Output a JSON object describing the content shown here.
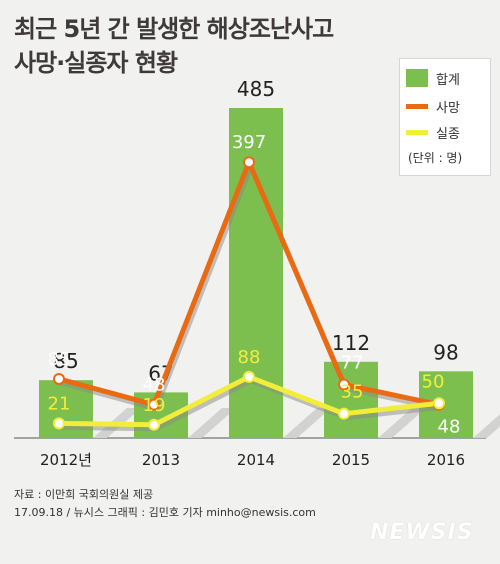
{
  "title": [
    "최근 5년 간 발생한 해상조난사고",
    "사망·실종자 현황"
  ],
  "legend": {
    "items": [
      {
        "label": "합계",
        "color": "#7dbf4f"
      },
      {
        "label": "사망",
        "color": "#ea6a12"
      },
      {
        "label": "실종",
        "color": "#f2ed3b"
      }
    ],
    "unit": "(단위 : 명)"
  },
  "chart_data": {
    "type": "bar",
    "categories": [
      "2012년",
      "2013",
      "2014",
      "2015",
      "2016"
    ],
    "series": [
      {
        "name": "합계",
        "kind": "bar",
        "color": "#7dbf4f",
        "values": [
          85,
          67,
          485,
          112,
          98
        ]
      },
      {
        "name": "사망",
        "kind": "line",
        "color": "#ea6a12",
        "values": [
          85,
          48,
          397,
          77,
          48
        ]
      },
      {
        "name": "실종",
        "kind": "line",
        "color": "#f2ed3b",
        "values": [
          21,
          19,
          88,
          35,
          50
        ]
      }
    ]
  },
  "footer": {
    "source": "자료 : 이만희 국회의원실 제공",
    "credit": "17.09.18 / 뉴시스 그래픽 : 김민호 기자 minho@newsis.com"
  },
  "logo": "NEWSIS"
}
